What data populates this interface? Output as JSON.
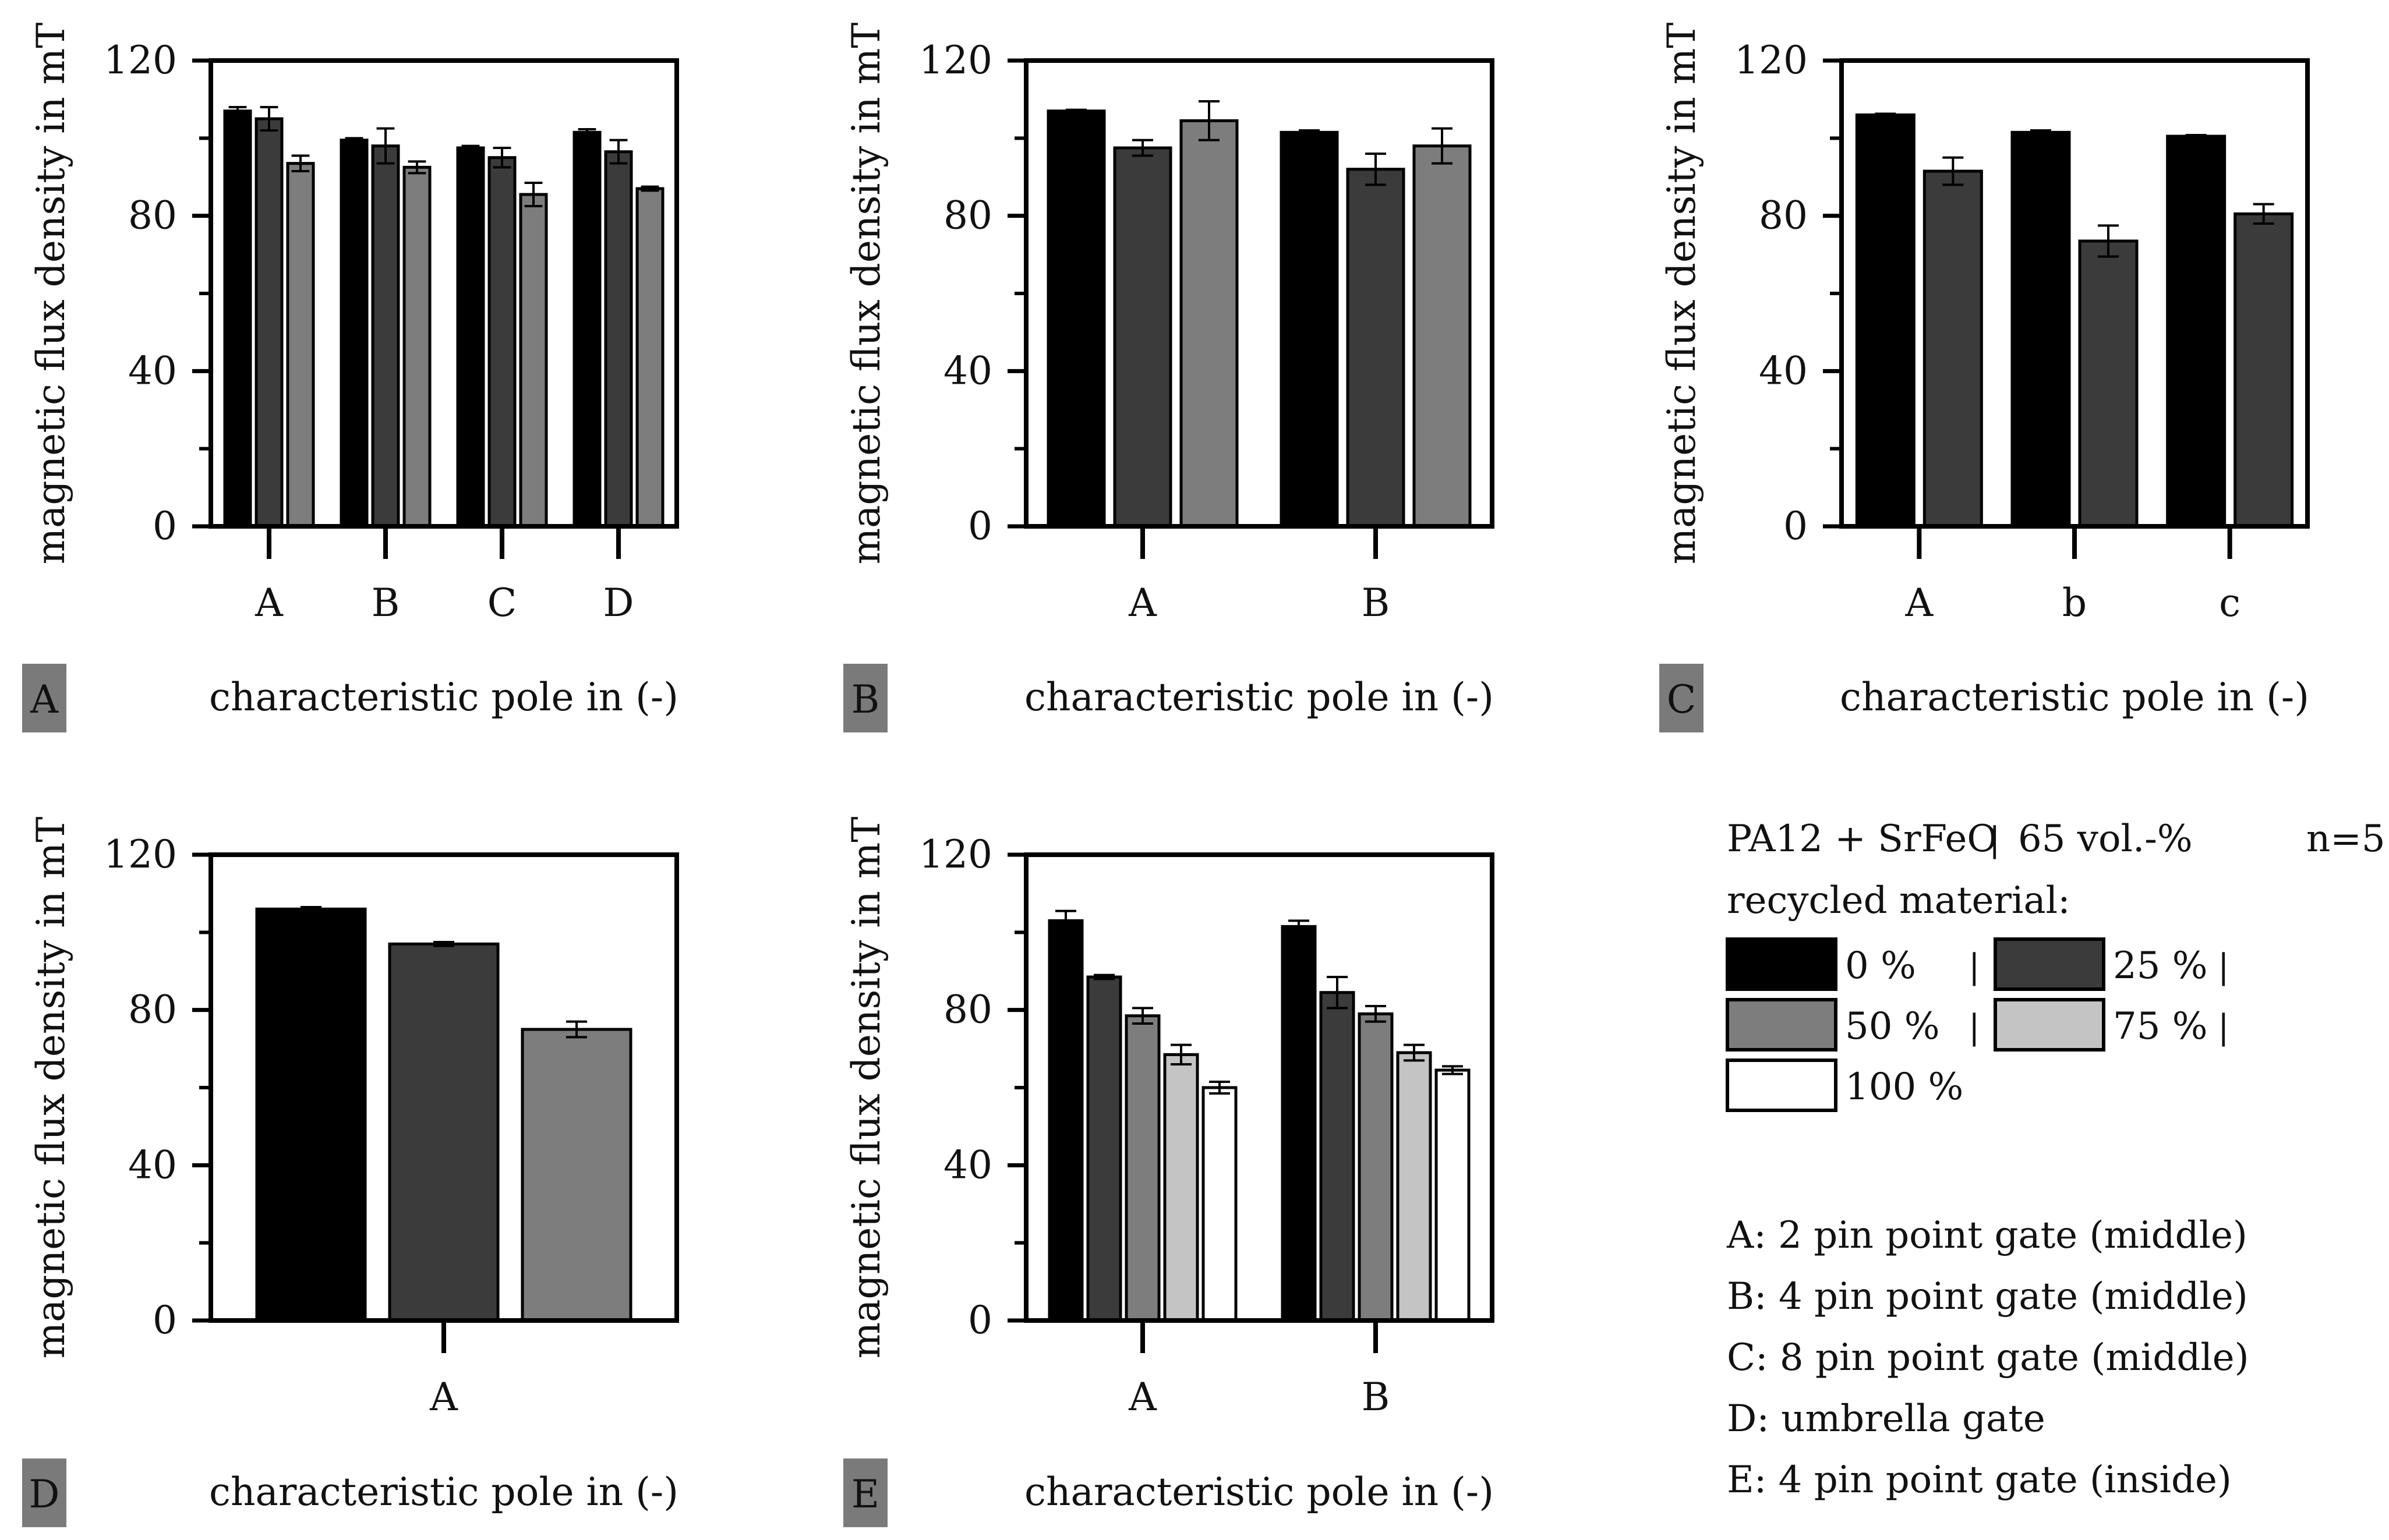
{
  "colors": {
    "c0": "#000000",
    "c25": "#3b3b3b",
    "c50": "#7d7d7d",
    "c75": "#c4c4c4",
    "c100": "#ffffff",
    "panel_tag_bg": "#7a7a7a",
    "axis": "#000000"
  },
  "chart_data": [
    {
      "id": "A",
      "type": "bar",
      "panel_label": "A",
      "xlabel": "characteristic pole in (-)",
      "ylabel": "magnetic flux density in mT",
      "ylim": [
        0,
        120
      ],
      "yticks": [
        0,
        40,
        80,
        120
      ],
      "categories": [
        "A",
        "B",
        "C",
        "D"
      ],
      "series": [
        {
          "name": "0 %",
          "color_key": "c0",
          "values": [
            107,
            99.5,
            97.5,
            101.5
          ],
          "errors": [
            1.0,
            0.5,
            0.5,
            0.8
          ]
        },
        {
          "name": "25 %",
          "color_key": "c25",
          "values": [
            105,
            98,
            95,
            96.5
          ],
          "errors": [
            3.0,
            4.5,
            2.5,
            3.0
          ]
        },
        {
          "name": "50 %",
          "color_key": "c50",
          "values": [
            93.5,
            92.5,
            85.5,
            87
          ],
          "errors": [
            2.0,
            1.5,
            3.0,
            0.5
          ]
        }
      ]
    },
    {
      "id": "B",
      "type": "bar",
      "panel_label": "B",
      "xlabel": "characteristic pole in (-)",
      "ylabel": "magnetic flux density in mT",
      "ylim": [
        0,
        120
      ],
      "yticks": [
        0,
        40,
        80,
        120
      ],
      "categories": [
        "A",
        "B"
      ],
      "series": [
        {
          "name": "0 %",
          "color_key": "c0",
          "values": [
            107,
            101.5
          ],
          "errors": [
            0.3,
            0.5
          ]
        },
        {
          "name": "25 %",
          "color_key": "c25",
          "values": [
            97.5,
            92
          ],
          "errors": [
            2.0,
            4.0
          ]
        },
        {
          "name": "50 %",
          "color_key": "c50",
          "values": [
            104.5,
            98
          ],
          "errors": [
            5.0,
            4.5
          ]
        }
      ]
    },
    {
      "id": "C",
      "type": "bar",
      "panel_label": "C",
      "xlabel": "characteristic pole in (-)",
      "ylabel": "magnetic flux density in mT",
      "ylim": [
        0,
        120
      ],
      "yticks": [
        0,
        40,
        80,
        120
      ],
      "categories": [
        "A",
        "b",
        "c"
      ],
      "series": [
        {
          "name": "0 %",
          "color_key": "c0",
          "values": [
            106,
            101.5,
            100.5
          ],
          "errors": [
            0.3,
            0.5,
            0.3
          ]
        },
        {
          "name": "25 %",
          "color_key": "c25",
          "values": [
            91.5,
            73.5,
            80.5
          ],
          "errors": [
            3.5,
            4.0,
            2.5
          ]
        }
      ]
    },
    {
      "id": "D",
      "type": "bar",
      "panel_label": "D",
      "xlabel": "characteristic pole in (-)",
      "ylabel": "magnetic flux density in mT",
      "ylim": [
        0,
        120
      ],
      "yticks": [
        0,
        40,
        80,
        120
      ],
      "categories": [
        "A"
      ],
      "series": [
        {
          "name": "0 %",
          "color_key": "c0",
          "values": [
            106
          ],
          "errors": [
            0.5
          ]
        },
        {
          "name": "25 %",
          "color_key": "c25",
          "values": [
            97
          ],
          "errors": [
            0.5
          ]
        },
        {
          "name": "50 %",
          "color_key": "c50",
          "values": [
            75
          ],
          "errors": [
            2.0
          ]
        }
      ]
    },
    {
      "id": "E",
      "type": "bar",
      "panel_label": "E",
      "xlabel": "characteristic pole in (-)",
      "ylabel": "magnetic flux density in mT",
      "ylim": [
        0,
        120
      ],
      "yticks": [
        0,
        40,
        80,
        120
      ],
      "categories": [
        "A",
        "B"
      ],
      "series": [
        {
          "name": "0 %",
          "color_key": "c0",
          "values": [
            103,
            101.5
          ],
          "errors": [
            2.5,
            1.5
          ]
        },
        {
          "name": "25 %",
          "color_key": "c25",
          "values": [
            88.5,
            84.5
          ],
          "errors": [
            0.5,
            4.0
          ]
        },
        {
          "name": "50 %",
          "color_key": "c50",
          "values": [
            78.5,
            79
          ],
          "errors": [
            2.0,
            2.0
          ]
        },
        {
          "name": "75 %",
          "color_key": "c75",
          "values": [
            68.5,
            69
          ],
          "errors": [
            2.5,
            2.0
          ]
        },
        {
          "name": "100 %",
          "color_key": "c100",
          "values": [
            60,
            64.5
          ],
          "errors": [
            1.5,
            1.0
          ]
        }
      ]
    }
  ],
  "legend": {
    "title": "PA12 + SrFeO",
    "separator": "|",
    "vol": "65 vol.-%",
    "n": "n=5",
    "subtitle": "recycled material:",
    "items": [
      {
        "label": "0 %",
        "suffix": "|",
        "color_key": "c0"
      },
      {
        "label": "25 %",
        "suffix": "|",
        "color_key": "c25"
      },
      {
        "label": "50 %",
        "suffix": "|",
        "color_key": "c50"
      },
      {
        "label": "75 %",
        "suffix": "|",
        "color_key": "c75"
      },
      {
        "label": "100 %",
        "suffix": "",
        "color_key": "c100"
      }
    ],
    "notes": [
      "A: 2 pin point gate (middle)",
      "B: 4 pin point gate (middle)",
      "C: 8 pin point gate (middle)",
      "D: umbrella gate",
      "E: 4 pin point gate (inside)"
    ]
  }
}
